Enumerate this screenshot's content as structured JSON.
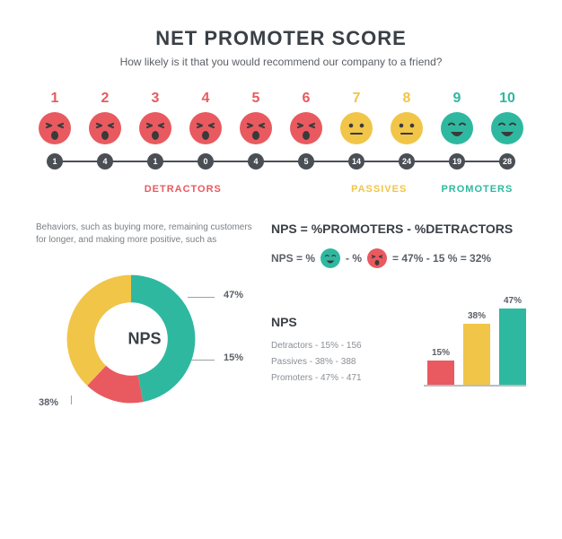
{
  "header": {
    "title": "NET PROMOTER SCORE",
    "subtitle": "How likely is it that you would recommend our company to a friend?"
  },
  "colors": {
    "detractor": "#e85a5f",
    "passive": "#f1c548",
    "promoter": "#2fb8a0",
    "axis": "#4a4f55",
    "text_dark": "#3a4046",
    "text_muted": "#8a8f95"
  },
  "score_row": {
    "items": [
      {
        "num": "1",
        "count": "1",
        "group": "detractor"
      },
      {
        "num": "2",
        "count": "4",
        "group": "detractor"
      },
      {
        "num": "3",
        "count": "1",
        "group": "detractor"
      },
      {
        "num": "4",
        "count": "0",
        "group": "detractor"
      },
      {
        "num": "5",
        "count": "4",
        "group": "detractor"
      },
      {
        "num": "6",
        "count": "5",
        "group": "detractor"
      },
      {
        "num": "7",
        "count": "14",
        "group": "passive"
      },
      {
        "num": "8",
        "count": "24",
        "group": "passive"
      },
      {
        "num": "9",
        "count": "19",
        "group": "promoter"
      },
      {
        "num": "10",
        "count": "28",
        "group": "promoter"
      }
    ],
    "labels": {
      "detractors": "DETRACTORS",
      "passives": "PASSIVES",
      "promoters": "PROMOTERS"
    }
  },
  "description": "Behaviors, such as buying more, remaining customers for longer, and making more positive, such as",
  "donut": {
    "center_label": "NPS",
    "slices": [
      {
        "label": "47%",
        "value": 47,
        "color": "#2fb8a0"
      },
      {
        "label": "15%",
        "value": 15,
        "color": "#e85a5f"
      },
      {
        "label": "38%",
        "value": 38,
        "color": "#f1c548"
      }
    ],
    "label_positions": {
      "p47": "47%",
      "p15": "15%",
      "p38": "38%"
    }
  },
  "formula": {
    "title": "NPS = %PROMOTERS - %DETRACTORS",
    "lhs": "NPS = %",
    "minus": "- %",
    "rhs": "= 47% - 15 % = 32%"
  },
  "nps_block": {
    "title": "NPS",
    "rows": [
      "Detractors - 15% - 156",
      "Passives - 38% - 388",
      "Promoters - 47% - 471"
    ]
  },
  "bar_chart": {
    "bars": [
      {
        "label": "15%",
        "value": 15,
        "color": "#e85a5f"
      },
      {
        "label": "38%",
        "value": 38,
        "color": "#f1c548"
      },
      {
        "label": "47%",
        "value": 47,
        "color": "#2fb8a0"
      }
    ],
    "max": 50
  }
}
